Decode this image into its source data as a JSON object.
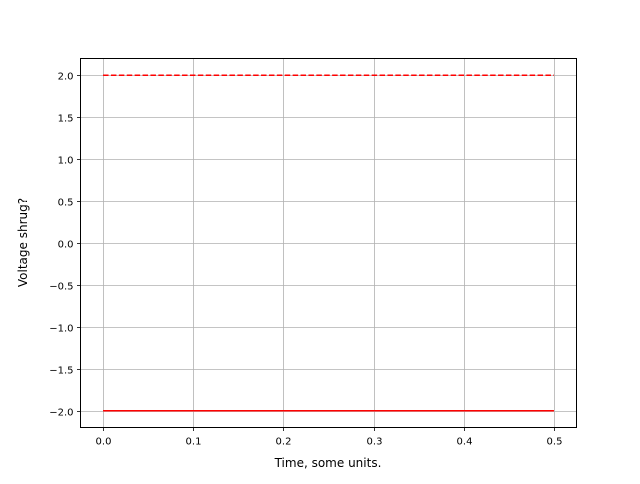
{
  "chart_data": {
    "type": "line",
    "title": "",
    "xlabel": "Time, some units.",
    "ylabel": "Voltage shrug?",
    "xlim": [
      -0.025,
      0.525
    ],
    "ylim": [
      -2.2,
      2.2
    ],
    "grid": true,
    "xticks": [
      0.0,
      0.1,
      0.2,
      0.3,
      0.4,
      0.5
    ],
    "xtick_labels": [
      "0.0",
      "0.1",
      "0.2",
      "0.3",
      "0.4",
      "0.5"
    ],
    "yticks": [
      -2.0,
      -1.5,
      -1.0,
      -0.5,
      0.0,
      0.5,
      1.0,
      1.5,
      2.0
    ],
    "ytick_labels": [
      "−2.0",
      "−1.5",
      "−1.0",
      "−0.5",
      "0.0",
      "0.5",
      "1.0",
      "1.5",
      "2.0"
    ],
    "series": [
      {
        "x": [
          0.0,
          0.5
        ],
        "y": [
          2.0,
          2.0
        ],
        "color": "#ff0000",
        "linestyle": "dashed"
      },
      {
        "x": [
          0.0,
          0.5
        ],
        "y": [
          -2.0,
          -2.0
        ],
        "color": "#ff0000",
        "linestyle": "solid"
      }
    ]
  }
}
